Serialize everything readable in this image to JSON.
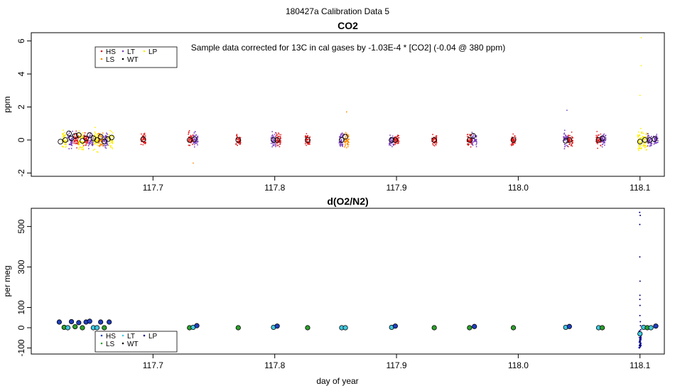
{
  "figure": {
    "supertitle": "180427a   Calibration Data 5",
    "xlabel": "day of year"
  },
  "chart_data": [
    {
      "type": "scatter",
      "title": "CO2",
      "ylabel": "ppm",
      "annotation": "Sample data corrected for 13C in cal gases by -1.03E-4 * [CO2] (-0.04 @ 380 ppm)",
      "xlim": [
        117.6,
        118.12
      ],
      "ylim": [
        -2.2,
        6.5
      ],
      "xticks": [
        "117.7",
        "117.8",
        "117.9",
        "118.0",
        "118.1"
      ],
      "yticks": [
        "-2",
        "0",
        "2",
        "4",
        "6"
      ],
      "legend_position": "top-left",
      "legend": [
        {
          "name": "HS",
          "color": "#e31a1c"
        },
        {
          "name": "LS",
          "color": "#ff8c00"
        },
        {
          "name": "LT",
          "color": "#7b3fbf"
        },
        {
          "name": "WT",
          "color": "#000000"
        },
        {
          "name": "LP",
          "color": "#ffee00"
        }
      ],
      "clusters": [
        {
          "x": 117.627,
          "color": "#ffee00",
          "spread": 0.9
        },
        {
          "x": 117.632,
          "color": "#7b3fbf",
          "spread": 0.8
        },
        {
          "x": 117.637,
          "color": "#e31a1c",
          "spread": 0.8
        },
        {
          "x": 117.641,
          "color": "#ffee00",
          "spread": 0.9
        },
        {
          "x": 117.645,
          "color": "#e31a1c",
          "spread": 0.7
        },
        {
          "x": 117.649,
          "color": "#7b3fbf",
          "spread": 0.8
        },
        {
          "x": 117.653,
          "color": "#ffee00",
          "spread": 1.0
        },
        {
          "x": 117.657,
          "color": "#ff8c00",
          "spread": 0.8
        },
        {
          "x": 117.661,
          "color": "#7b3fbf",
          "spread": 0.8
        },
        {
          "x": 117.665,
          "color": "#ffee00",
          "spread": 0.9
        },
        {
          "x": 117.692,
          "color": "#e31a1c",
          "spread": 0.6
        },
        {
          "x": 117.731,
          "color": "#e31a1c",
          "spread": 0.8
        },
        {
          "x": 117.735,
          "color": "#7b3fbf",
          "spread": 0.7
        },
        {
          "x": 117.77,
          "color": "#e31a1c",
          "spread": 0.6
        },
        {
          "x": 117.799,
          "color": "#7b3fbf",
          "spread": 0.8
        },
        {
          "x": 117.803,
          "color": "#e31a1c",
          "spread": 0.6
        },
        {
          "x": 117.827,
          "color": "#e31a1c",
          "spread": 0.6
        },
        {
          "x": 117.855,
          "color": "#7b3fbf",
          "spread": 0.7
        },
        {
          "x": 117.859,
          "color": "#ff8c00",
          "spread": 0.7
        },
        {
          "x": 117.896,
          "color": "#7b3fbf",
          "spread": 0.7
        },
        {
          "x": 117.9,
          "color": "#e31a1c",
          "spread": 0.6
        },
        {
          "x": 117.931,
          "color": "#e31a1c",
          "spread": 0.6
        },
        {
          "x": 117.96,
          "color": "#e31a1c",
          "spread": 0.7
        },
        {
          "x": 117.964,
          "color": "#7b3fbf",
          "spread": 0.7
        },
        {
          "x": 117.996,
          "color": "#e31a1c",
          "spread": 0.6
        },
        {
          "x": 118.039,
          "color": "#7b3fbf",
          "spread": 0.7
        },
        {
          "x": 118.043,
          "color": "#e31a1c",
          "spread": 0.6
        },
        {
          "x": 118.066,
          "color": "#e31a1c",
          "spread": 0.7
        },
        {
          "x": 118.07,
          "color": "#7b3fbf",
          "spread": 0.6
        },
        {
          "x": 118.1,
          "color": "#ffee00",
          "spread": 1.0
        },
        {
          "x": 118.104,
          "color": "#ffee00",
          "spread": 0.9
        },
        {
          "x": 118.108,
          "color": "#7b3fbf",
          "spread": 0.7
        },
        {
          "x": 118.113,
          "color": "#7b3fbf",
          "spread": 0.6
        }
      ],
      "outliers": [
        {
          "x": 118.101,
          "y": 6.2,
          "color": "#ffee00"
        },
        {
          "x": 118.101,
          "y": 4.5,
          "color": "#ffee00"
        },
        {
          "x": 118.1,
          "y": 2.7,
          "color": "#ffee00"
        },
        {
          "x": 118.04,
          "y": 1.8,
          "color": "#7b3fbf"
        },
        {
          "x": 117.859,
          "y": 1.7,
          "color": "#ff8c00"
        },
        {
          "x": 117.733,
          "y": -1.4,
          "color": "#ff8c00"
        }
      ],
      "means": [
        {
          "x": 117.624,
          "y": -0.1
        },
        {
          "x": 117.628,
          "y": 0.0
        },
        {
          "x": 117.631,
          "y": 0.4
        },
        {
          "x": 117.633,
          "y": 0.1
        },
        {
          "x": 117.636,
          "y": 0.25
        },
        {
          "x": 117.639,
          "y": 0.3
        },
        {
          "x": 117.642,
          "y": -0.05
        },
        {
          "x": 117.645,
          "y": 0.1
        },
        {
          "x": 117.648,
          "y": 0.3
        },
        {
          "x": 117.651,
          "y": 0.1
        },
        {
          "x": 117.654,
          "y": 0.0
        },
        {
          "x": 117.657,
          "y": 0.2
        },
        {
          "x": 117.66,
          "y": -0.1
        },
        {
          "x": 117.663,
          "y": 0.05
        },
        {
          "x": 117.666,
          "y": 0.15
        },
        {
          "x": 117.692,
          "y": 0.05
        },
        {
          "x": 117.73,
          "y": 0.0
        },
        {
          "x": 117.734,
          "y": 0.05
        },
        {
          "x": 117.77,
          "y": 0.0
        },
        {
          "x": 117.799,
          "y": 0.0
        },
        {
          "x": 117.802,
          "y": 0.0
        },
        {
          "x": 117.827,
          "y": 0.0
        },
        {
          "x": 117.855,
          "y": 0.0
        },
        {
          "x": 117.858,
          "y": 0.2
        },
        {
          "x": 117.896,
          "y": 0.0
        },
        {
          "x": 117.899,
          "y": 0.0
        },
        {
          "x": 117.931,
          "y": 0.0
        },
        {
          "x": 117.96,
          "y": 0.0
        },
        {
          "x": 117.963,
          "y": 0.25
        },
        {
          "x": 117.996,
          "y": 0.0
        },
        {
          "x": 118.039,
          "y": -0.05
        },
        {
          "x": 118.042,
          "y": 0.0
        },
        {
          "x": 118.066,
          "y": 0.0
        },
        {
          "x": 118.069,
          "y": 0.1
        },
        {
          "x": 118.1,
          "y": -0.1
        },
        {
          "x": 118.104,
          "y": 0.0
        },
        {
          "x": 118.108,
          "y": 0.0
        },
        {
          "x": 118.112,
          "y": 0.05
        }
      ]
    },
    {
      "type": "scatter",
      "title": "d(O2/N2)",
      "ylabel": "per meg",
      "xlabel": "day of year",
      "xlim": [
        117.6,
        118.12
      ],
      "ylim": [
        -130,
        590
      ],
      "xticks": [
        "117.7",
        "117.8",
        "117.9",
        "118.0",
        "118.1"
      ],
      "yticks": [
        "-100",
        "0",
        "100",
        "300",
        "500"
      ],
      "legend_position": "bottom-left",
      "legend": [
        {
          "name": "HS",
          "color": "#1f3fbf"
        },
        {
          "name": "LS",
          "color": "#2ca02c"
        },
        {
          "name": "LT",
          "color": "#40c8e0"
        },
        {
          "name": "WT",
          "color": "#000000"
        },
        {
          "name": "LP",
          "color": "#00008b"
        }
      ],
      "means": [
        {
          "x": 117.623,
          "y": 28,
          "color": "#1f3fbf"
        },
        {
          "x": 117.627,
          "y": 2,
          "color": "#2ca02c"
        },
        {
          "x": 117.63,
          "y": 0,
          "color": "#40c8e0"
        },
        {
          "x": 117.633,
          "y": 30,
          "color": "#1f3fbf"
        },
        {
          "x": 117.636,
          "y": 5,
          "color": "#2ca02c"
        },
        {
          "x": 117.639,
          "y": 25,
          "color": "#1f3fbf"
        },
        {
          "x": 117.642,
          "y": 0,
          "color": "#2ca02c"
        },
        {
          "x": 117.645,
          "y": 28,
          "color": "#1f3fbf"
        },
        {
          "x": 117.648,
          "y": 32,
          "color": "#1f3fbf"
        },
        {
          "x": 117.651,
          "y": 0,
          "color": "#40c8e0"
        },
        {
          "x": 117.654,
          "y": 0,
          "color": "#40c8e0"
        },
        {
          "x": 117.657,
          "y": 28,
          "color": "#1f3fbf"
        },
        {
          "x": 117.66,
          "y": 0,
          "color": "#2ca02c"
        },
        {
          "x": 117.664,
          "y": 28,
          "color": "#1f3fbf"
        },
        {
          "x": 117.73,
          "y": 0,
          "color": "#2ca02c"
        },
        {
          "x": 117.733,
          "y": 2,
          "color": "#40c8e0"
        },
        {
          "x": 117.736,
          "y": 10,
          "color": "#1f3fbf"
        },
        {
          "x": 117.77,
          "y": 0,
          "color": "#2ca02c"
        },
        {
          "x": 117.799,
          "y": 2,
          "color": "#40c8e0"
        },
        {
          "x": 117.802,
          "y": 8,
          "color": "#1f3fbf"
        },
        {
          "x": 117.827,
          "y": 0,
          "color": "#2ca02c"
        },
        {
          "x": 117.855,
          "y": 0,
          "color": "#40c8e0"
        },
        {
          "x": 117.858,
          "y": 0,
          "color": "#40c8e0"
        },
        {
          "x": 117.896,
          "y": 2,
          "color": "#40c8e0"
        },
        {
          "x": 117.899,
          "y": 8,
          "color": "#1f3fbf"
        },
        {
          "x": 117.931,
          "y": 0,
          "color": "#2ca02c"
        },
        {
          "x": 117.96,
          "y": 0,
          "color": "#2ca02c"
        },
        {
          "x": 117.964,
          "y": 6,
          "color": "#1f3fbf"
        },
        {
          "x": 117.996,
          "y": 0,
          "color": "#2ca02c"
        },
        {
          "x": 118.039,
          "y": 2,
          "color": "#40c8e0"
        },
        {
          "x": 118.042,
          "y": 6,
          "color": "#1f3fbf"
        },
        {
          "x": 118.066,
          "y": 0,
          "color": "#40c8e0"
        },
        {
          "x": 118.069,
          "y": 0,
          "color": "#2ca02c"
        },
        {
          "x": 118.1,
          "y": -30,
          "color": "#40c8e0"
        },
        {
          "x": 118.103,
          "y": 2,
          "color": "#40c8e0"
        },
        {
          "x": 118.106,
          "y": 0,
          "color": "#2ca02c"
        },
        {
          "x": 118.109,
          "y": 0,
          "color": "#40c8e0"
        },
        {
          "x": 118.113,
          "y": 8,
          "color": "#1f3fbf"
        }
      ],
      "spike": {
        "x": 118.1,
        "color": "#00008b",
        "values": [
          570,
          555,
          510,
          350,
          230,
          160,
          140,
          110,
          60,
          30,
          10,
          -10,
          -30,
          -45,
          -55,
          -65,
          -75,
          -85,
          -95,
          -100,
          -90,
          -80,
          -70,
          -60,
          -50
        ]
      }
    }
  ]
}
